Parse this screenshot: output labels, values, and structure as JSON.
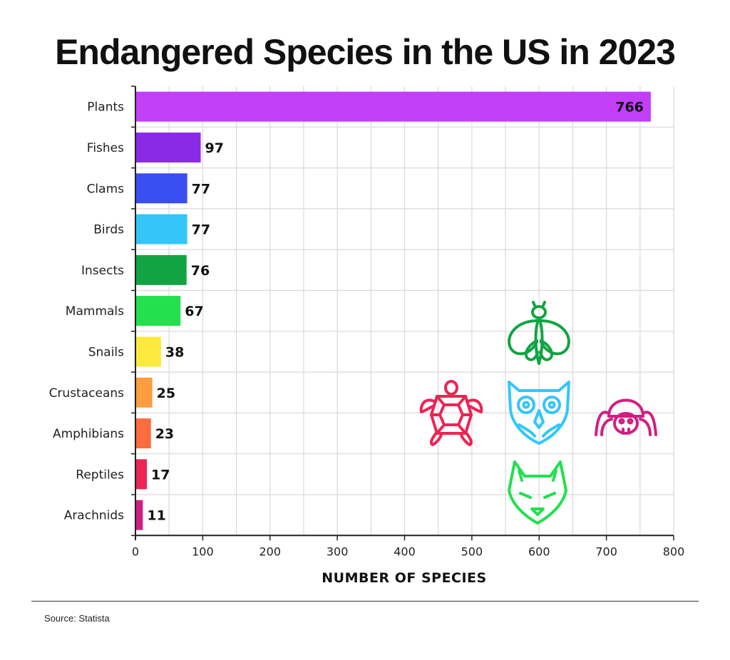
{
  "chart_data": {
    "type": "bar",
    "orientation": "horizontal",
    "title": "Endangered Species in the US in 2023",
    "xlabel": "NUMBER OF SPECIES",
    "xlim": [
      0,
      800
    ],
    "xticks": [
      0,
      100,
      200,
      300,
      400,
      500,
      600,
      700,
      800
    ],
    "grid": true,
    "categories": [
      "Plants",
      "Fishes",
      "Clams",
      "Birds",
      "Insects",
      "Mammals",
      "Snails",
      "Crustaceans",
      "Amphibians",
      "Reptiles",
      "Arachnids"
    ],
    "values": [
      766,
      97,
      77,
      77,
      76,
      67,
      38,
      25,
      23,
      17,
      11
    ],
    "colors": [
      "#c23ff7",
      "#8b2ae6",
      "#3a4ff2",
      "#34c6fb",
      "#12a443",
      "#22e04e",
      "#fde93c",
      "#fd9d3d",
      "#fe6b3c",
      "#ee2453",
      "#d01f82"
    ]
  },
  "source": "Source: Statista",
  "icons": [
    {
      "name": "insect-icon",
      "color": "#12a443"
    },
    {
      "name": "turtle-icon",
      "color": "#ee2453"
    },
    {
      "name": "owl-icon",
      "color": "#34c6fb"
    },
    {
      "name": "spider-icon",
      "color": "#d01f82"
    },
    {
      "name": "wolf-icon",
      "color": "#22e04e"
    }
  ]
}
